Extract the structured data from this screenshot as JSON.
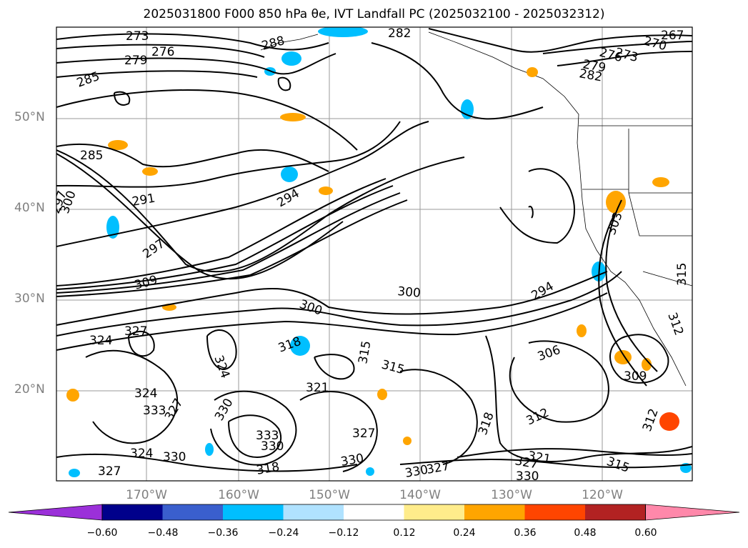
{
  "title": "2025031800 F000 850 hPa θe, IVT Landfall PC (2025032100 - 2025032312)",
  "lat_labels": [
    "50°N",
    "40°N",
    "30°N",
    "20°N"
  ],
  "lon_labels": [
    "170°W",
    "160°W",
    "150°W",
    "140°W",
    "130°W",
    "120°W"
  ],
  "colorbar": {
    "ticks": [
      "−0.60",
      "−0.48",
      "−0.36",
      "−0.24",
      "−0.12",
      "0.12",
      "0.24",
      "0.36",
      "0.48",
      "0.60"
    ],
    "colors": [
      "#9b30d9",
      "#00008b",
      "#3a5fcd",
      "#00bfff",
      "#b0e2ff",
      "#ffffff",
      "#ffec8b",
      "#ffa500",
      "#ff4500",
      "#b22222",
      "#ff88aa"
    ]
  },
  "contour_labels": [
    "273",
    "276",
    "279",
    "282",
    "285",
    "288",
    "270",
    "267",
    "273",
    "276",
    "279",
    "282",
    "285",
    "291",
    "294",
    "297",
    "300",
    "297",
    "309",
    "300",
    "300",
    "324",
    "327",
    "324",
    "318",
    "315",
    "315",
    "321",
    "324",
    "333",
    "327",
    "330",
    "333",
    "330",
    "318",
    "324",
    "330",
    "327",
    "327",
    "330",
    "318",
    "330",
    "327",
    "321",
    "327",
    "330",
    "315",
    "312",
    "306",
    "309",
    "312",
    "294",
    "303",
    "312",
    "315"
  ]
}
